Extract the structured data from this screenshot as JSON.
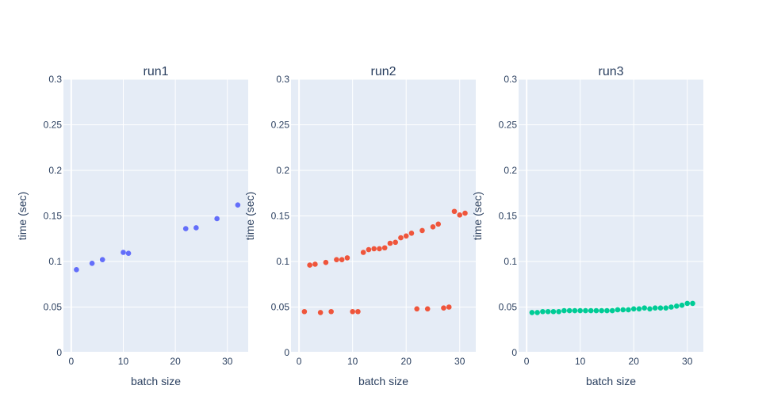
{
  "colors": {
    "plot_background": "#e5ecf6",
    "grid": "#ffffff",
    "text": "#2a3f5f"
  },
  "chart_data": [
    {
      "type": "scatter",
      "title": "run1",
      "xlabel": "batch size",
      "ylabel": "time (sec)",
      "xlim": [
        -1.5,
        34
      ],
      "ylim": [
        0,
        0.3
      ],
      "x_ticks": [
        0,
        10,
        20,
        30
      ],
      "y_ticks": [
        0,
        0.05,
        0.1,
        0.15,
        0.2,
        0.25,
        0.3
      ],
      "x_tick_labels": [
        "0",
        "10",
        "20",
        "30"
      ],
      "y_tick_labels": [
        "0",
        "0.05",
        "0.1",
        "0.15",
        "0.2",
        "0.25",
        "0.3"
      ],
      "grid": true,
      "series": [
        {
          "color": "#636efa",
          "x": [
            1,
            4,
            6,
            10,
            11,
            22,
            24,
            28,
            32
          ],
          "y": [
            0.091,
            0.098,
            0.102,
            0.11,
            0.109,
            0.136,
            0.137,
            0.147,
            0.162
          ]
        }
      ]
    },
    {
      "type": "scatter",
      "title": "run2",
      "xlabel": "batch size",
      "ylabel": "time (sec)",
      "xlim": [
        -1.5,
        33
      ],
      "ylim": [
        0,
        0.3
      ],
      "x_ticks": [
        0,
        10,
        20,
        30
      ],
      "y_ticks": [
        0,
        0.05,
        0.1,
        0.15,
        0.2,
        0.25,
        0.3
      ],
      "x_tick_labels": [
        "0",
        "10",
        "20",
        "30"
      ],
      "y_tick_labels": [
        "0",
        "0.05",
        "0.1",
        "0.15",
        "0.2",
        "0.25",
        "0.3"
      ],
      "grid": true,
      "series": [
        {
          "color": "#ef553b",
          "x": [
            1,
            2,
            3,
            4,
            5,
            6,
            7,
            8,
            9,
            10,
            11,
            12,
            13,
            14,
            15,
            16,
            17,
            18,
            19,
            20,
            21,
            22,
            23,
            24,
            25,
            26,
            27,
            28,
            29,
            30,
            31
          ],
          "y": [
            0.045,
            0.096,
            0.097,
            0.044,
            0.099,
            0.045,
            0.102,
            0.102,
            0.104,
            0.045,
            0.045,
            0.11,
            0.113,
            0.114,
            0.114,
            0.115,
            0.12,
            0.121,
            0.126,
            0.128,
            0.131,
            0.048,
            0.134,
            0.048,
            0.138,
            0.141,
            0.049,
            0.05,
            0.155,
            0.151,
            0.153
          ]
        }
      ]
    },
    {
      "type": "scatter",
      "title": "run3",
      "xlabel": "batch size",
      "ylabel": "time (sec)",
      "xlim": [
        -1.5,
        33
      ],
      "ylim": [
        0,
        0.3
      ],
      "x_ticks": [
        0,
        10,
        20,
        30
      ],
      "y_ticks": [
        0,
        0.05,
        0.1,
        0.15,
        0.2,
        0.25,
        0.3
      ],
      "x_tick_labels": [
        "0",
        "10",
        "20",
        "30"
      ],
      "y_tick_labels": [
        "0",
        "0.05",
        "0.1",
        "0.15",
        "0.2",
        "0.25",
        "0.3"
      ],
      "grid": true,
      "series": [
        {
          "color": "#00cc96",
          "x": [
            1,
            2,
            3,
            4,
            5,
            6,
            7,
            8,
            9,
            10,
            11,
            12,
            13,
            14,
            15,
            16,
            17,
            18,
            19,
            20,
            21,
            22,
            23,
            24,
            25,
            26,
            27,
            28,
            29,
            30,
            31
          ],
          "y": [
            0.044,
            0.044,
            0.045,
            0.045,
            0.045,
            0.045,
            0.046,
            0.046,
            0.046,
            0.046,
            0.046,
            0.046,
            0.046,
            0.046,
            0.046,
            0.046,
            0.047,
            0.047,
            0.047,
            0.048,
            0.048,
            0.049,
            0.048,
            0.049,
            0.049,
            0.049,
            0.05,
            0.051,
            0.052,
            0.054,
            0.054
          ]
        }
      ]
    }
  ]
}
